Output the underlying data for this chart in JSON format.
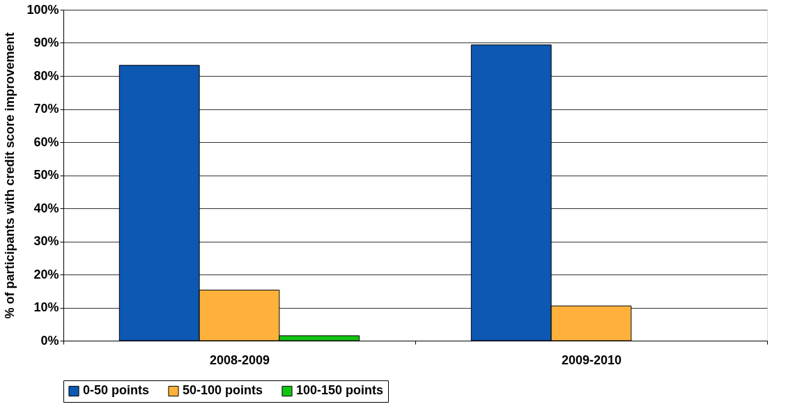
{
  "chart_data": {
    "type": "bar",
    "ylabel": "% of participants with credit score improvement",
    "categories": [
      "2008-2009",
      "2009-2010"
    ],
    "series": [
      {
        "name": "0-50 points",
        "color": "#0c58b2",
        "values": [
          83.2,
          89.4
        ]
      },
      {
        "name": "50-100 points",
        "color": "#ffb13b",
        "values": [
          15.3,
          10.5
        ]
      },
      {
        "name": "100-150 points",
        "color": "#12c312",
        "values": [
          1.5,
          null
        ]
      }
    ],
    "ylim": [
      0,
      100
    ],
    "yticks": [
      {
        "value": 0,
        "label": "0%"
      },
      {
        "value": 10,
        "label": "10%"
      },
      {
        "value": 20,
        "label": "20%"
      },
      {
        "value": 30,
        "label": "30%"
      },
      {
        "value": 40,
        "label": "40%"
      },
      {
        "value": 50,
        "label": "50%"
      },
      {
        "value": 60,
        "label": "60%"
      },
      {
        "value": 70,
        "label": "70%"
      },
      {
        "value": 80,
        "label": "80%"
      },
      {
        "value": 90,
        "label": "90%"
      },
      {
        "value": 100,
        "label": "100%"
      }
    ],
    "grid": "y",
    "legend": "bottom"
  }
}
